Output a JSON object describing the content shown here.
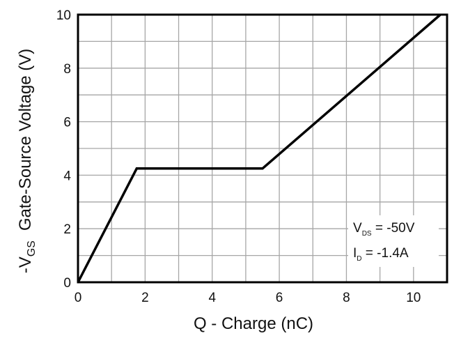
{
  "chart_data": {
    "type": "line",
    "title": "",
    "xlabel": "Q - Charge (nC)",
    "ylabel": {
      "prefix": "-V",
      "subscript": "GS",
      "text": "Gate-Source Voltage (V)"
    },
    "xlim": [
      0,
      11
    ],
    "ylim": [
      0,
      10
    ],
    "x_ticks": [
      "0",
      "2",
      "4",
      "6",
      "8",
      "10"
    ],
    "y_ticks": [
      "0",
      "2",
      "4",
      "6",
      "8",
      "10"
    ],
    "grid": true,
    "series": [
      {
        "x": [
          0,
          1.75,
          5.5,
          10.8
        ],
        "y": [
          0,
          4.25,
          4.25,
          10
        ]
      }
    ],
    "annotations": [
      {
        "main": "V",
        "sub": "DS",
        "text": " = -50V"
      },
      {
        "main": "I",
        "sub": "D",
        "text": " = -1.4A"
      }
    ],
    "line_color": "#000000",
    "grid_color": "#a6a6a6"
  }
}
